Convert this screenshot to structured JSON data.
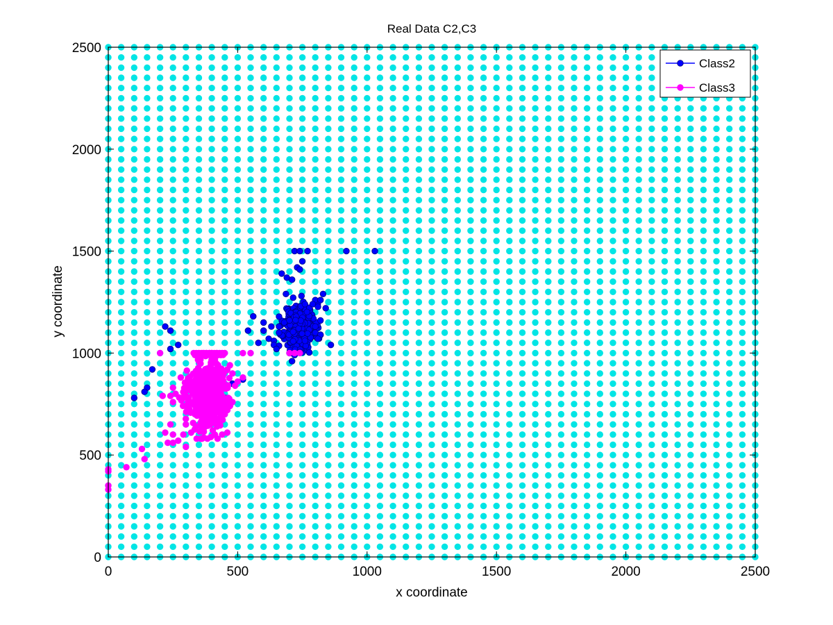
{
  "chart_data": {
    "type": "scatter",
    "title": "Real Data C2,C3",
    "xlabel": "x coordinate",
    "ylabel": "y coordinate",
    "xlim": [
      0,
      2500
    ],
    "ylim": [
      0,
      2500
    ],
    "xticks": [
      0,
      500,
      1000,
      1500,
      2000,
      2500
    ],
    "yticks": [
      0,
      500,
      1000,
      1500,
      2000,
      2500
    ],
    "grid": false,
    "legend_position": "top-right",
    "background_grid_points": {
      "color": "#00e5e5",
      "x_start": 0,
      "x_end": 2500,
      "x_step": 50,
      "y_start": 0,
      "y_end": 2500,
      "y_step": 50
    },
    "series": [
      {
        "name": "Class2",
        "color": "#0000ff",
        "edge_color": "#000080",
        "clusters": [
          {
            "cx": 740,
            "cy": 1130,
            "sx": 30,
            "sy": 55,
            "n": 380,
            "seed": 11
          }
        ],
        "points": [
          [
            720,
            1500
          ],
          [
            740,
            1500
          ],
          [
            770,
            1500
          ],
          [
            920,
            1500
          ],
          [
            1030,
            1500
          ],
          [
            750,
            1450
          ],
          [
            730,
            1420
          ],
          [
            740,
            1410
          ],
          [
            670,
            1390
          ],
          [
            690,
            1370
          ],
          [
            710,
            1360
          ],
          [
            830,
            1290
          ],
          [
            800,
            1260
          ],
          [
            820,
            1260
          ],
          [
            760,
            1240
          ],
          [
            790,
            1240
          ],
          [
            840,
            1220
          ],
          [
            560,
            1180
          ],
          [
            600,
            1150
          ],
          [
            680,
            1150
          ],
          [
            700,
            1160
          ],
          [
            660,
            1130
          ],
          [
            630,
            1130
          ],
          [
            800,
            1130
          ],
          [
            820,
            1160
          ],
          [
            540,
            1110
          ],
          [
            600,
            1110
          ],
          [
            660,
            1100
          ],
          [
            800,
            1100
          ],
          [
            820,
            1090
          ],
          [
            620,
            1070
          ],
          [
            640,
            1060
          ],
          [
            760,
            1060
          ],
          [
            810,
            1070
          ],
          [
            860,
            1040
          ],
          [
            580,
            1050
          ],
          [
            640,
            1040
          ],
          [
            650,
            1020
          ],
          [
            720,
            990
          ],
          [
            710,
            960
          ],
          [
            700,
            1000
          ],
          [
            520,
            870
          ],
          [
            480,
            850
          ],
          [
            410,
            830
          ],
          [
            380,
            820
          ],
          [
            330,
            800
          ],
          [
            420,
            790
          ],
          [
            450,
            780
          ],
          [
            270,
            1040
          ],
          [
            240,
            1020
          ],
          [
            220,
            1130
          ],
          [
            240,
            1110
          ],
          [
            170,
            920
          ],
          [
            150,
            830
          ],
          [
            140,
            810
          ],
          [
            100,
            780
          ]
        ]
      },
      {
        "name": "Class3",
        "color": "#ff00ff",
        "edge_color": "#ff00ff",
        "clusters": [
          {
            "cx": 380,
            "cy": 790,
            "sx": 36,
            "sy": 85,
            "n": 520,
            "seed": 23
          }
        ],
        "rows": [
          {
            "y": 1000,
            "x": [
              200,
              330,
              340,
              350,
              360,
              370,
              380,
              390,
              400,
              410,
              420,
              430,
              440,
              450,
              520,
              550,
              700,
              720,
              740
            ]
          },
          {
            "y": 990,
            "x": [
              335,
              345,
              355,
              365,
              375,
              385,
              395,
              405,
              415,
              425,
              435
            ]
          }
        ],
        "points": [
          [
            0,
            420
          ],
          [
            0,
            430
          ],
          [
            0,
            350
          ],
          [
            0,
            330
          ],
          [
            70,
            440
          ],
          [
            140,
            480
          ],
          [
            130,
            530
          ],
          [
            210,
            790
          ],
          [
            230,
            560
          ],
          [
            220,
            610
          ],
          [
            250,
            600
          ],
          [
            240,
            650
          ],
          [
            270,
            570
          ],
          [
            250,
            560
          ],
          [
            300,
            540
          ],
          [
            290,
            600
          ],
          [
            320,
            610
          ],
          [
            440,
            600
          ],
          [
            460,
            610
          ],
          [
            480,
            760
          ],
          [
            490,
            840
          ],
          [
            500,
            860
          ],
          [
            520,
            880
          ],
          [
            480,
            900
          ],
          [
            460,
            920
          ],
          [
            470,
            940
          ],
          [
            240,
            790
          ],
          [
            250,
            830
          ],
          [
            280,
            880
          ],
          [
            300,
            830
          ],
          [
            310,
            780
          ],
          [
            260,
            800
          ],
          [
            250,
            760
          ],
          [
            300,
            650
          ],
          [
            420,
            640
          ],
          [
            430,
            680
          ],
          [
            450,
            700
          ],
          [
            460,
            720
          ],
          [
            470,
            740
          ]
        ]
      }
    ]
  }
}
